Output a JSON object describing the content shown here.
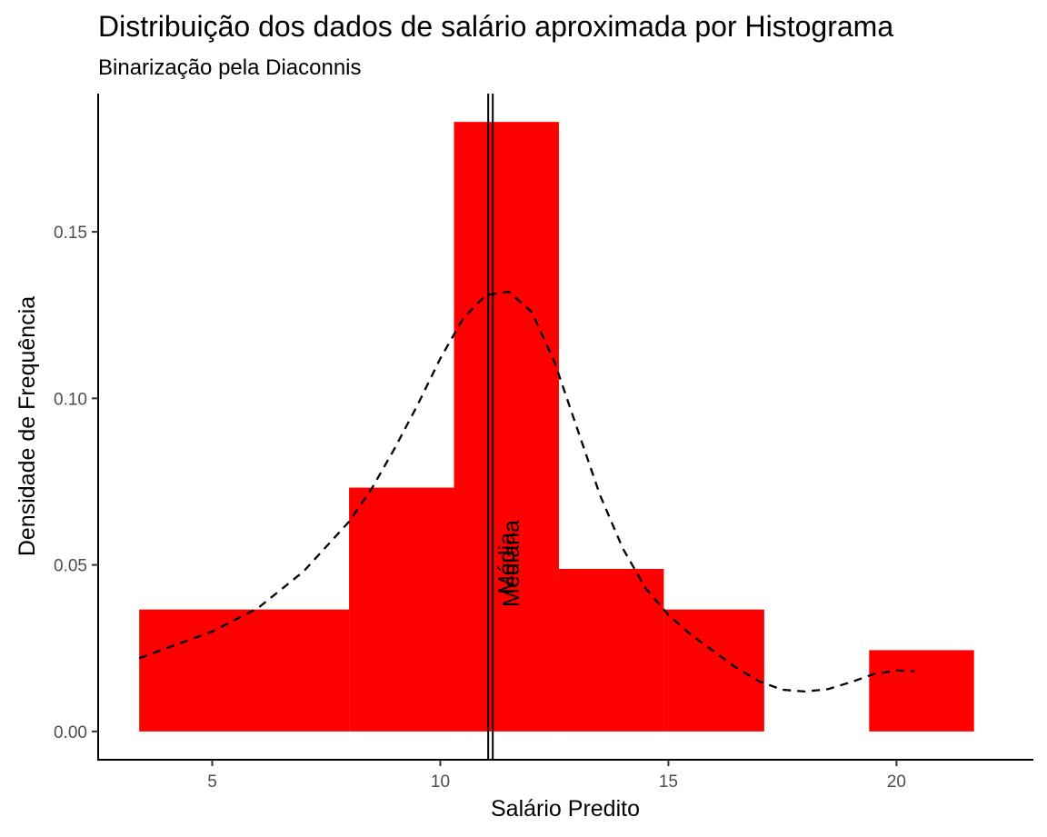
{
  "chart_data": {
    "type": "histogram",
    "title": "Distribuição dos dados de salário aproximada por Histograma",
    "subtitle": "Binarização pela Diaconnis",
    "xlabel": "Salário Predito",
    "ylabel": "Densidade de Frequência",
    "xlim": [
      2.5,
      23.0
    ],
    "ylim": [
      -0.0085,
      0.1915
    ],
    "x_ticks": [
      5,
      10,
      15,
      20
    ],
    "x_tick_labels": [
      "5",
      "10",
      "15",
      "20"
    ],
    "y_ticks": [
      0.0,
      0.05,
      0.1,
      0.15
    ],
    "y_tick_labels": [
      "0.00",
      "0.05",
      "0.10",
      "0.15"
    ],
    "grid": false,
    "bar_color": "#ff0000",
    "bins": [
      {
        "x0": 3.4,
        "x1": 8.0,
        "density": 0.0366
      },
      {
        "x0": 8.0,
        "x1": 10.3,
        "density": 0.0732
      },
      {
        "x0": 10.3,
        "x1": 12.6,
        "density": 0.183
      },
      {
        "x0": 12.6,
        "x1": 14.9,
        "density": 0.0488
      },
      {
        "x0": 14.9,
        "x1": 17.1,
        "density": 0.0366
      },
      {
        "x0": 17.1,
        "x1": 19.4,
        "density": 0.0
      },
      {
        "x0": 19.4,
        "x1": 21.7,
        "density": 0.0244
      }
    ],
    "density_curve": {
      "style": "dashed",
      "color": "#000000",
      "x": [
        3.4,
        4.0,
        5.0,
        6.0,
        7.0,
        8.0,
        8.5,
        9.0,
        9.5,
        10.0,
        10.5,
        11.0,
        11.5,
        12.0,
        12.5,
        13.0,
        13.5,
        14.0,
        14.5,
        15.0,
        15.5,
        16.0,
        16.5,
        17.0,
        17.5,
        18.0,
        18.5,
        19.0,
        19.5,
        20.0,
        20.4
      ],
      "y": [
        0.022,
        0.025,
        0.03,
        0.037,
        0.048,
        0.063,
        0.073,
        0.085,
        0.098,
        0.112,
        0.124,
        0.131,
        0.132,
        0.126,
        0.111,
        0.091,
        0.071,
        0.055,
        0.043,
        0.035,
        0.029,
        0.024,
        0.019,
        0.015,
        0.0125,
        0.012,
        0.0127,
        0.0148,
        0.0172,
        0.0183,
        0.0181
      ]
    },
    "vlines": [
      {
        "label": "Média",
        "x": 11.05
      },
      {
        "label": "Mediana",
        "x": 11.15
      }
    ]
  }
}
